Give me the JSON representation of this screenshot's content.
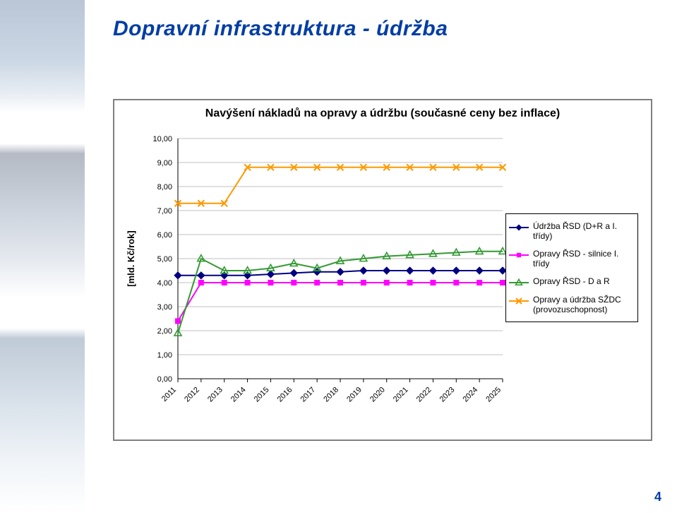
{
  "slide": {
    "title": "Dopravní infrastruktura - údržba",
    "title_fontsize": 30,
    "title_color": "#003da5",
    "page_number": "4"
  },
  "chart": {
    "type": "line",
    "title": "Navýšení nákladů na opravy a údržbu (současné ceny bez inflace)",
    "title_fontsize": 16,
    "title_weight": "700",
    "background_color": "#ffffff",
    "border_color": "#808080",
    "y_axis": {
      "label": "[mld. Kč/rok]",
      "label_fontsize": 13,
      "min": 0,
      "max": 10,
      "tick_step": 1,
      "ticks": [
        "0,00",
        "1,00",
        "2,00",
        "3,00",
        "4,00",
        "5,00",
        "6,00",
        "7,00",
        "8,00",
        "9,00",
        "10,00"
      ],
      "gridline_color": "#c0c0c0",
      "axis_color": "#000000"
    },
    "x_axis": {
      "labels": [
        "2011",
        "2012",
        "2013",
        "2014",
        "2015",
        "2016",
        "2017",
        "2018",
        "2019",
        "2020",
        "2021",
        "2022",
        "2023",
        "2024",
        "2025"
      ],
      "rotation_deg": -45,
      "axis_color": "#000000",
      "fontsize": 11
    },
    "series": [
      {
        "id": "udrzba_rsd",
        "label": "Údržba ŘSD (D+R a I. třídy)",
        "color": "#000080",
        "line_width": 2,
        "marker": "diamond",
        "marker_size": 7,
        "values": [
          4.3,
          4.3,
          4.3,
          4.3,
          4.35,
          4.4,
          4.45,
          4.45,
          4.5,
          4.5,
          4.5,
          4.5,
          4.5,
          4.5,
          4.5
        ]
      },
      {
        "id": "opravy_rsd_silnice",
        "label": "Opravy ŘSD - silnice I. třídy",
        "color": "#ff00ff",
        "line_width": 2,
        "marker": "square",
        "marker_size": 7,
        "values": [
          2.4,
          4.0,
          4.0,
          4.0,
          4.0,
          4.0,
          4.0,
          4.0,
          4.0,
          4.0,
          4.0,
          4.0,
          4.0,
          4.0,
          4.0
        ]
      },
      {
        "id": "opravy_rsd_dar",
        "label": "Opravy ŘSD - D a R",
        "color": "#339933",
        "line_width": 2,
        "marker": "triangle",
        "marker_size": 8,
        "values": [
          1.9,
          5.0,
          4.5,
          4.5,
          4.6,
          4.8,
          4.6,
          4.9,
          5.0,
          5.1,
          5.15,
          5.2,
          5.25,
          5.3,
          5.3
        ]
      },
      {
        "id": "opravy_udrzba_szdc",
        "label": "Opravy a údržba SŽDC (provozuschopnost)",
        "color": "#ff9900",
        "line_width": 2,
        "marker": "x",
        "marker_size": 8,
        "values": [
          7.3,
          7.3,
          7.3,
          8.8,
          8.8,
          8.8,
          8.8,
          8.8,
          8.8,
          8.8,
          8.8,
          8.8,
          8.8,
          8.8,
          8.8
        ]
      }
    ],
    "legend": {
      "position": "right",
      "border_color": "#000000",
      "background_color": "#ffffff",
      "fontsize": 12
    }
  }
}
